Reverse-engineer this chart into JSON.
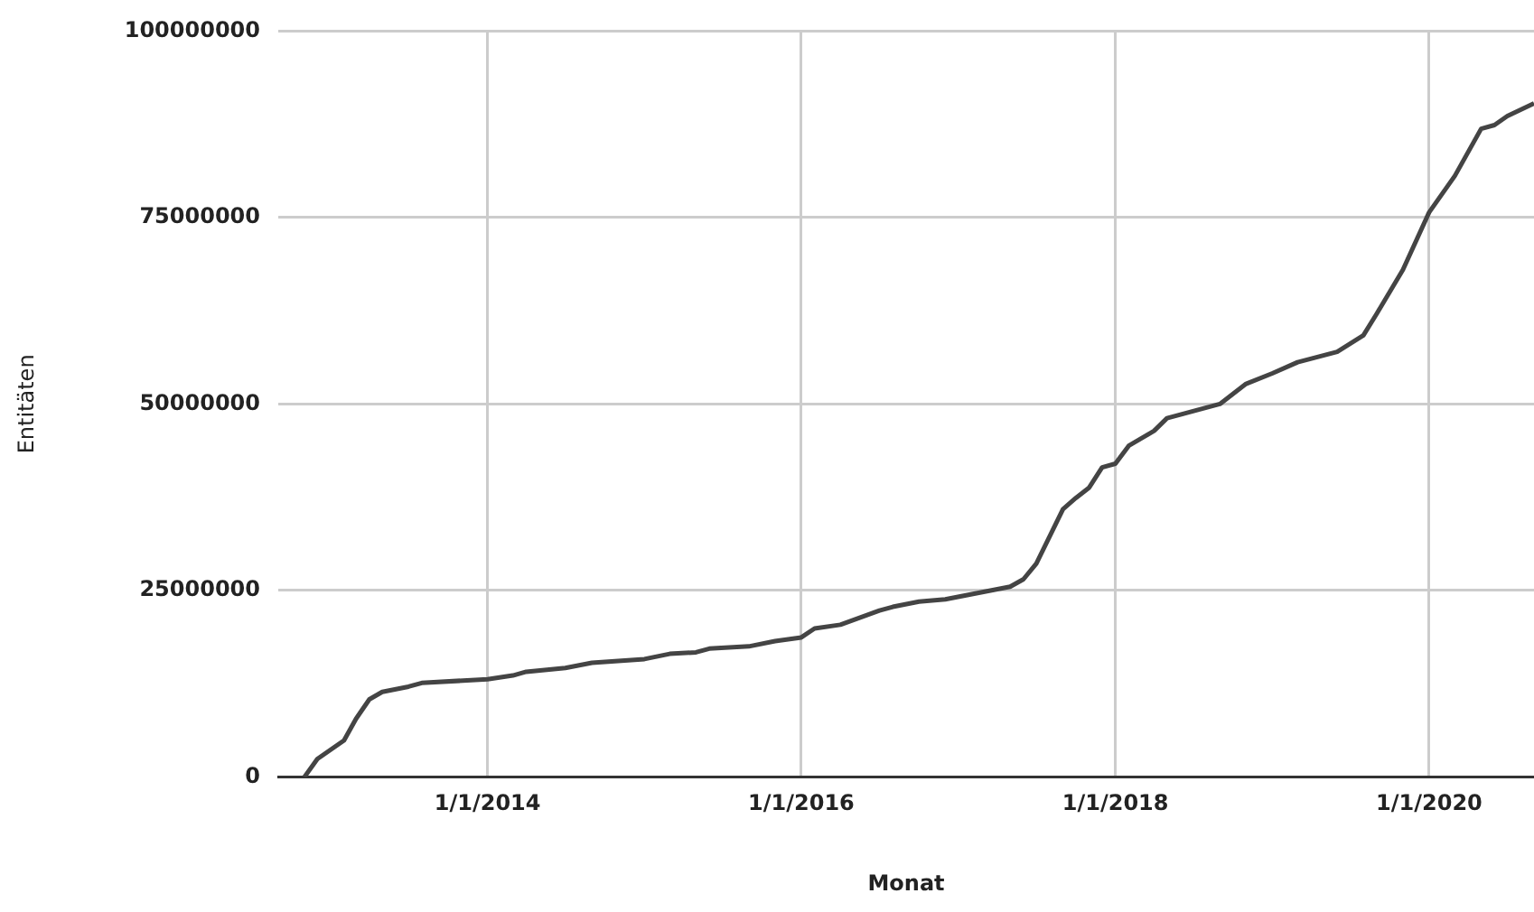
{
  "chart_data": {
    "type": "line",
    "xlabel": "Monat",
    "ylabel": "Entitäten",
    "x": [
      "2012-11",
      "2012-12",
      "2013-02",
      "2013-03",
      "2013-04",
      "2013-05",
      "2013-07",
      "2013-08",
      "2014-01",
      "2014-03",
      "2014-04",
      "2014-07",
      "2014-09",
      "2015-01",
      "2015-03",
      "2015-05",
      "2015-06",
      "2015-09",
      "2015-11",
      "2016-01",
      "2016-02",
      "2016-04",
      "2016-07",
      "2016-08",
      "2016-10",
      "2016-12",
      "2017-02",
      "2017-05",
      "2017-06",
      "2017-07",
      "2017-09",
      "2017-10",
      "2017-11",
      "2017-12",
      "2018-01",
      "2018-02",
      "2018-04",
      "2018-05",
      "2018-09",
      "2018-11",
      "2019-01",
      "2019-03",
      "2019-06",
      "2019-08",
      "2019-09",
      "2019-11",
      "2020-01",
      "2020-03",
      "2020-05",
      "2020-06",
      "2020-07",
      "2020-09"
    ],
    "series": [
      {
        "color": "#444444",
        "values": [
          0,
          2400000,
          4900000,
          7800000,
          10400000,
          11400000,
          12100000,
          12600000,
          13100000,
          13600000,
          14100000,
          14600000,
          15300000,
          15800000,
          16500000,
          16700000,
          17200000,
          17500000,
          18200000,
          18700000,
          19900000,
          20400000,
          22300000,
          22800000,
          23500000,
          23800000,
          24500000,
          25500000,
          26500000,
          28600000,
          35900000,
          37400000,
          38800000,
          41500000,
          42000000,
          44400000,
          46400000,
          48100000,
          50000000,
          52700000,
          54100000,
          55600000,
          57000000,
          59200000,
          62100000,
          68000000,
          75700000,
          80600000,
          86900000,
          87400000,
          88600000,
          90300000
        ]
      }
    ],
    "xlim": [
      "2012-09",
      "2020-09"
    ],
    "xticks": [
      {
        "value": "2014-01-01",
        "label": "1/1/2014"
      },
      {
        "value": "2016-01-01",
        "label": "1/1/2016"
      },
      {
        "value": "2018-01-01",
        "label": "1/1/2018"
      },
      {
        "value": "2020-01-01",
        "label": "1/1/2020"
      }
    ],
    "ylim": [
      0,
      100000000
    ],
    "yticks": [
      0,
      25000000,
      50000000,
      75000000,
      100000000
    ],
    "grid": true,
    "marker": "none",
    "line_style": "solid"
  }
}
